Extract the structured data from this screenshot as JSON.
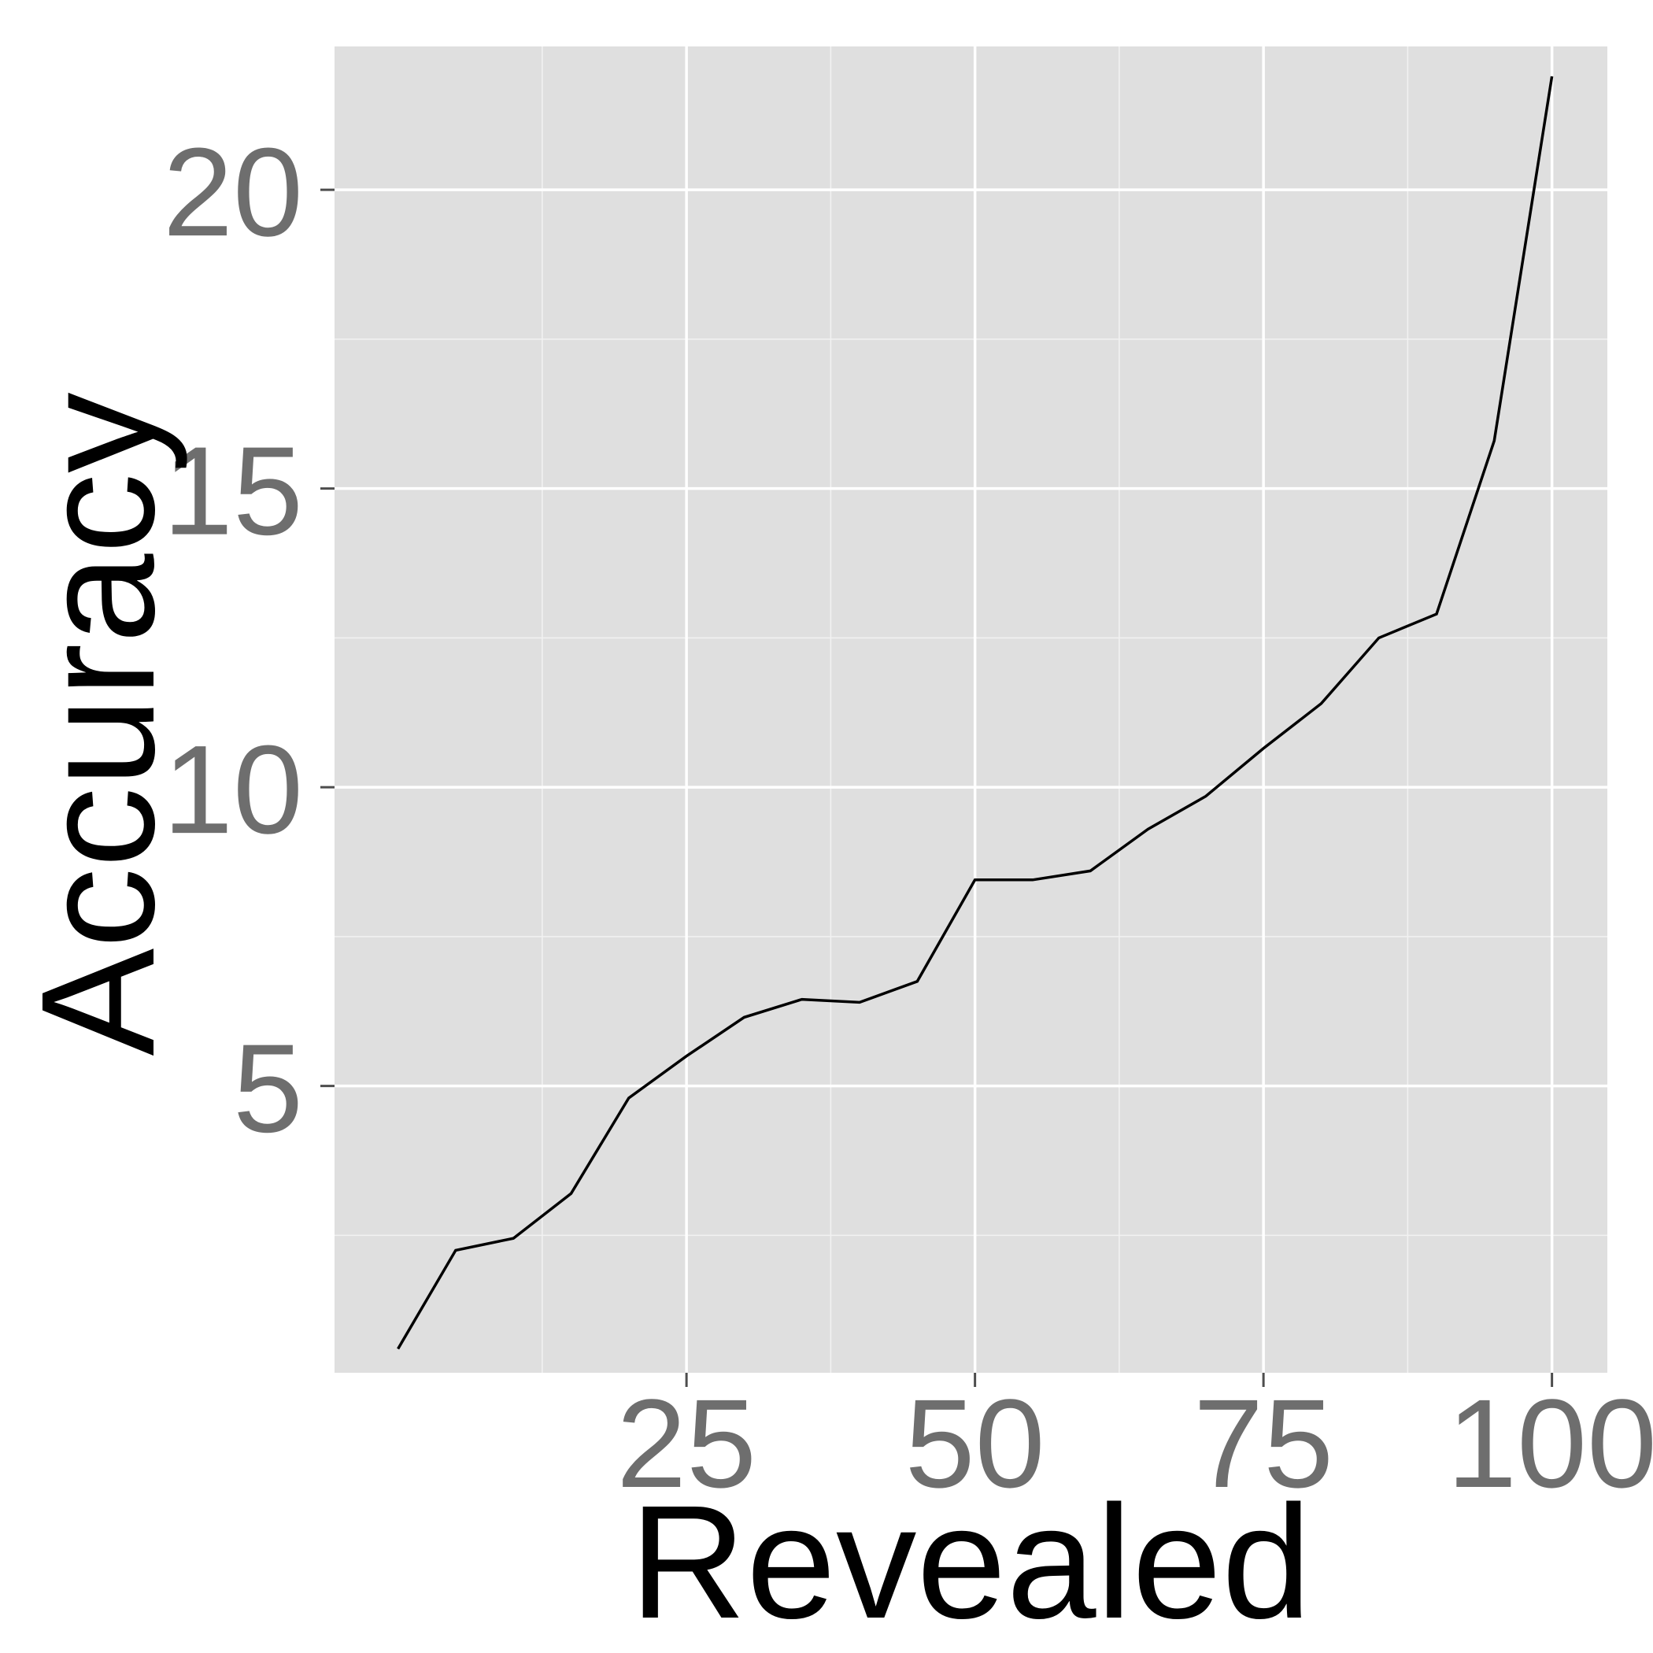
{
  "chart_data": {
    "type": "line",
    "title": "",
    "xlabel": "Revealed",
    "ylabel": "Accuracy",
    "xlim": [
      -5.5,
      104.8
    ],
    "ylim": [
      0.2,
      22.4
    ],
    "x_ticks": [
      25,
      50,
      75,
      100
    ],
    "x_tick_labels": [
      "25",
      "50",
      "75",
      "100"
    ],
    "x_minor": [
      12.5,
      37.5,
      62.5,
      87.5
    ],
    "y_ticks": [
      5,
      10,
      15,
      20
    ],
    "y_tick_labels": [
      "5",
      "10",
      "15",
      "20"
    ],
    "y_minor": [
      2.5,
      7.5,
      12.5,
      17.5
    ],
    "grid": true,
    "legend": "none",
    "series": [
      {
        "color": "#000000",
        "x": [
          0,
          5,
          10,
          15,
          20,
          25,
          30,
          35,
          40,
          45,
          50,
          55,
          60,
          65,
          70,
          75,
          80,
          85,
          90,
          95,
          100
        ],
        "y": [
          0.6,
          2.25,
          2.45,
          3.2,
          4.8,
          5.5,
          6.15,
          6.45,
          6.4,
          6.75,
          8.45,
          8.45,
          8.6,
          9.3,
          9.85,
          10.65,
          11.4,
          12.5,
          12.9,
          15.8,
          21.9
        ]
      }
    ]
  }
}
